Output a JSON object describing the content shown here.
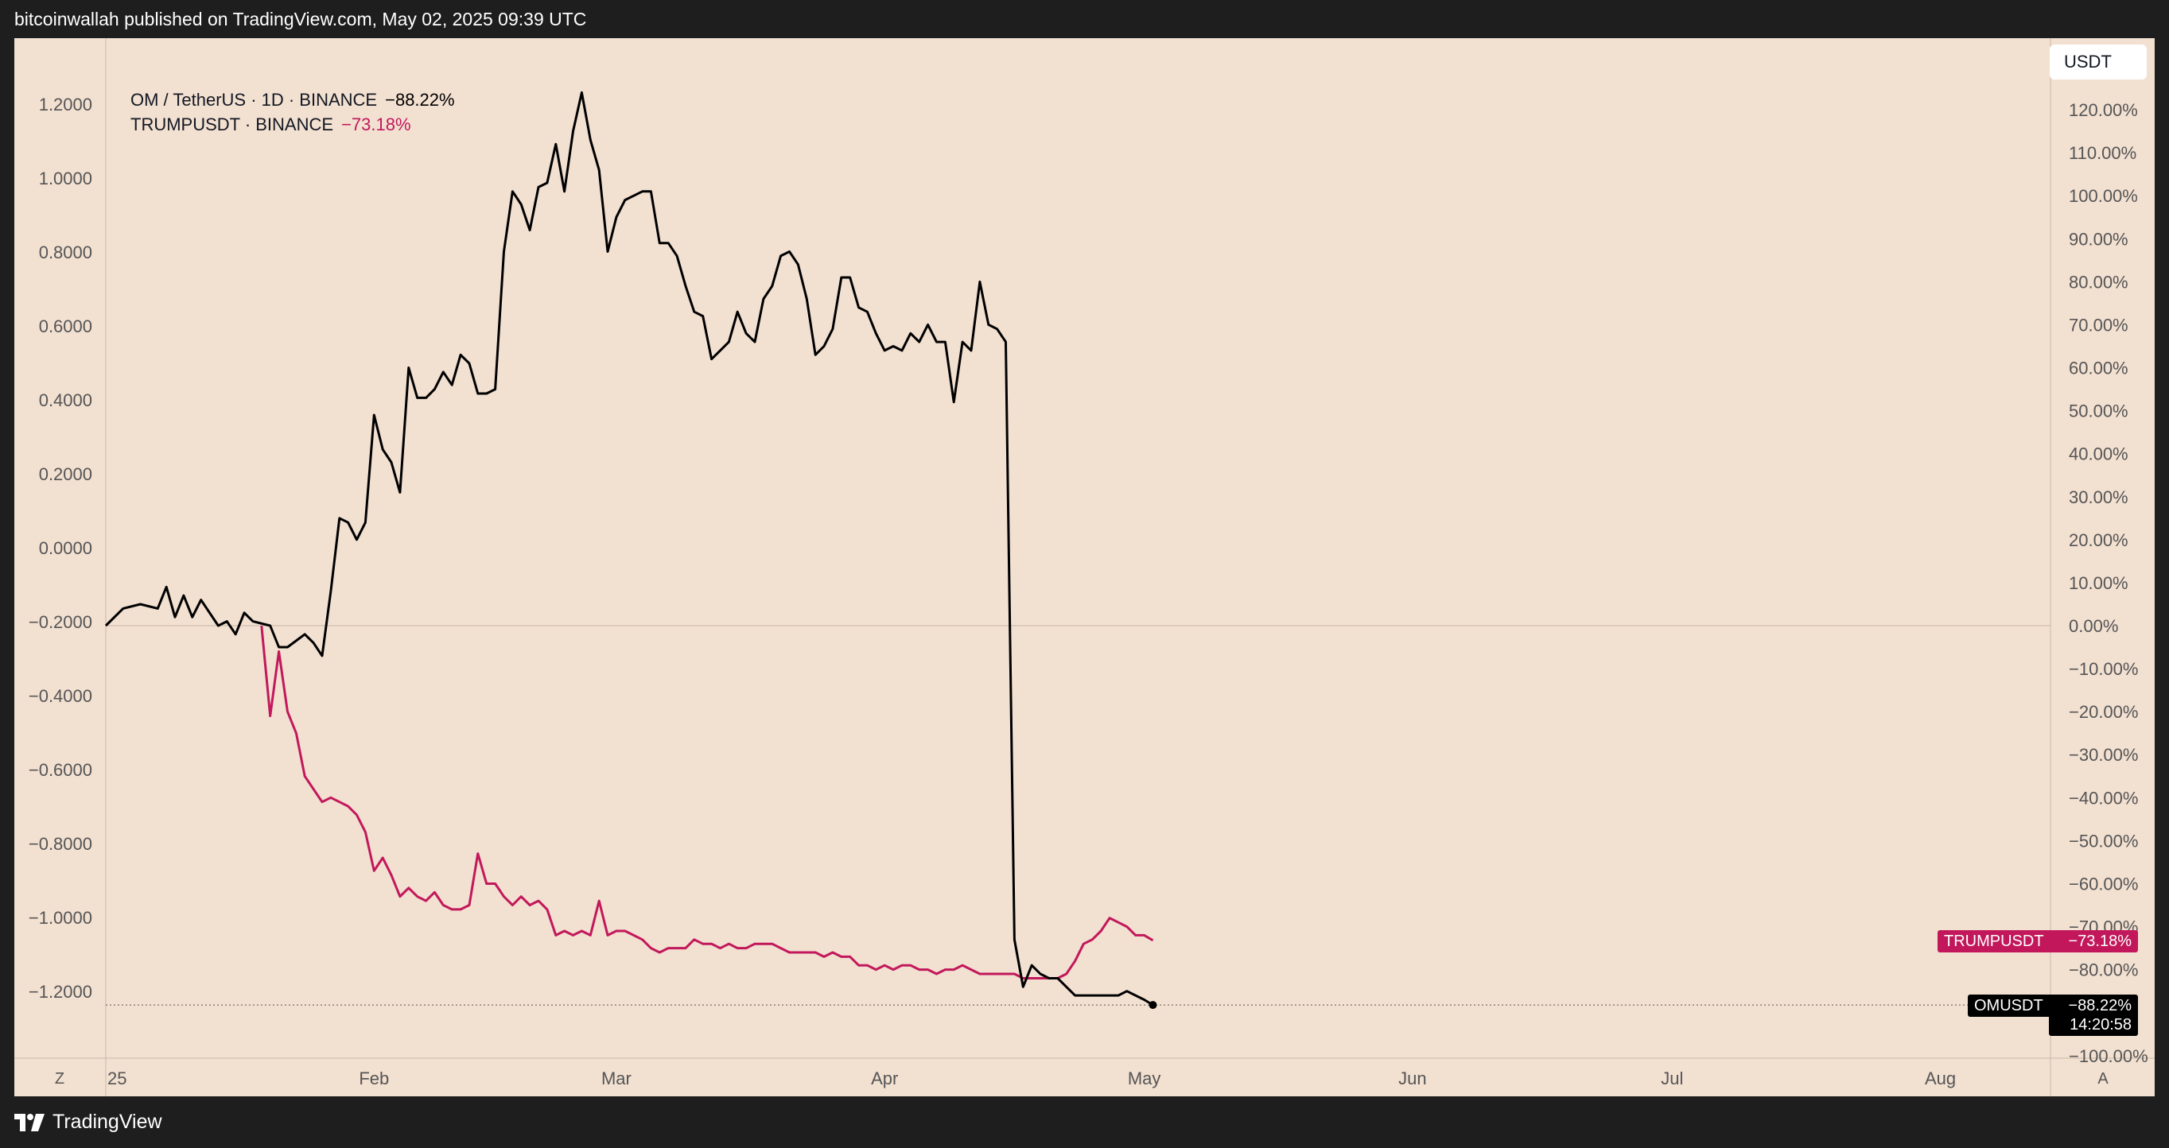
{
  "header": {
    "publisher_text": "bitcoinwallah published on TradingView.com, May 02, 2025 09:39 UTC"
  },
  "footer": {
    "brand": "TradingView"
  },
  "controls": {
    "currency_button": "USDT",
    "zoom_button": "Z",
    "auto_button": "A"
  },
  "legend": {
    "om": {
      "label": "OM / TetherUS · 1D · BINANCE",
      "change": "−88.22%"
    },
    "trump": {
      "label": "TRUMPUSDT · BINANCE",
      "change": "−73.18%"
    }
  },
  "price_tags": {
    "trump": {
      "name": "TRUMPUSDT",
      "value": "−73.18%"
    },
    "om": {
      "name": "OMUSDT",
      "value": "−88.22%",
      "countdown": "14:20:58"
    }
  },
  "colors": {
    "background": "#f2e0d1",
    "frame": "#1e1e1e",
    "om_line": "#000000",
    "trump_line": "#c2185b",
    "axis_text": "#555555"
  },
  "chart_data": {
    "type": "line",
    "title": "",
    "xlabel": "",
    "x_tick_labels": [
      "25",
      "Feb",
      "Mar",
      "Apr",
      "May",
      "Jun",
      "Jul",
      "Aug"
    ],
    "x_tick_dates": [
      "2025-01-01",
      "2025-02-01",
      "2025-03-01",
      "2025-04-01",
      "2025-05-01",
      "2025-06-01",
      "2025-07-01",
      "2025-08-01"
    ],
    "x_range": [
      "2025-01-01",
      "2025-08-19"
    ],
    "left_axis": {
      "ticks": [
        1.2,
        1.0,
        0.8,
        0.6,
        0.4,
        0.2,
        0.0,
        -0.2,
        -0.4,
        -0.6,
        -0.8,
        -1.0,
        -1.2
      ],
      "tick_labels": [
        "1.2000",
        "1.0000",
        "0.8000",
        "0.6000",
        "0.4000",
        "0.2000",
        "0.0000",
        "−0.2000",
        "−0.4000",
        "−0.6000",
        "−0.8000",
        "−1.0000",
        "−1.2000"
      ]
    },
    "right_axis": {
      "unit": "%",
      "range": [
        -100,
        123
      ],
      "ticks": [
        120,
        110,
        100,
        90,
        80,
        70,
        60,
        50,
        40,
        30,
        20,
        10,
        0,
        -10,
        -20,
        -30,
        -40,
        -50,
        -60,
        -70,
        -80,
        -90,
        -100
      ],
      "tick_labels": [
        "120.00%",
        "110.00%",
        "100.00%",
        "90.00%",
        "80.00%",
        "70.00%",
        "60.00%",
        "50.00%",
        "40.00%",
        "30.00%",
        "20.00%",
        "10.00%",
        "0.00%",
        "−10.00%",
        "−20.00%",
        "−30.00%",
        "−40.00%",
        "−50.00%",
        "−60.00%",
        "−70.00%",
        "−80.00%",
        "−90.00%",
        "−100.00%"
      ]
    },
    "grid": false,
    "legend_position": "top-left",
    "series": [
      {
        "name": "OM / TetherUS · 1D · BINANCE",
        "color": "#000000",
        "points": [
          [
            "2025-01-01",
            0.0
          ],
          [
            "2025-01-03",
            4
          ],
          [
            "2025-01-05",
            5
          ],
          [
            "2025-01-07",
            4
          ],
          [
            "2025-01-08",
            9
          ],
          [
            "2025-01-09",
            2
          ],
          [
            "2025-01-10",
            7
          ],
          [
            "2025-01-11",
            2
          ],
          [
            "2025-01-12",
            6
          ],
          [
            "2025-01-14",
            0
          ],
          [
            "2025-01-15",
            1
          ],
          [
            "2025-01-16",
            -2
          ],
          [
            "2025-01-17",
            3
          ],
          [
            "2025-01-18",
            1
          ],
          [
            "2025-01-20",
            0
          ],
          [
            "2025-01-21",
            -5
          ],
          [
            "2025-01-22",
            -5
          ],
          [
            "2025-01-24",
            -2
          ],
          [
            "2025-01-25",
            -4
          ],
          [
            "2025-01-26",
            -7
          ],
          [
            "2025-01-27",
            8
          ],
          [
            "2025-01-28",
            25
          ],
          [
            "2025-01-29",
            24
          ],
          [
            "2025-01-30",
            20
          ],
          [
            "2025-01-31",
            24
          ],
          [
            "2025-02-01",
            49
          ],
          [
            "2025-02-02",
            41
          ],
          [
            "2025-02-03",
            38
          ],
          [
            "2025-02-04",
            31
          ],
          [
            "2025-02-05",
            60
          ],
          [
            "2025-02-06",
            53
          ],
          [
            "2025-02-07",
            53
          ],
          [
            "2025-02-08",
            55
          ],
          [
            "2025-02-09",
            59
          ],
          [
            "2025-02-10",
            56
          ],
          [
            "2025-02-11",
            63
          ],
          [
            "2025-02-12",
            61
          ],
          [
            "2025-02-13",
            54
          ],
          [
            "2025-02-14",
            54
          ],
          [
            "2025-02-15",
            55
          ],
          [
            "2025-02-16",
            87
          ],
          [
            "2025-02-17",
            101
          ],
          [
            "2025-02-18",
            98
          ],
          [
            "2025-02-19",
            92
          ],
          [
            "2025-02-20",
            102
          ],
          [
            "2025-02-21",
            103
          ],
          [
            "2025-02-22",
            112
          ],
          [
            "2025-02-23",
            101
          ],
          [
            "2025-02-24",
            115
          ],
          [
            "2025-02-25",
            124
          ],
          [
            "2025-02-26",
            113
          ],
          [
            "2025-02-27",
            106
          ],
          [
            "2025-02-28",
            87
          ],
          [
            "2025-03-01",
            95
          ],
          [
            "2025-03-02",
            99
          ],
          [
            "2025-03-04",
            101
          ],
          [
            "2025-03-05",
            101
          ],
          [
            "2025-03-06",
            89
          ],
          [
            "2025-03-07",
            89
          ],
          [
            "2025-03-08",
            86
          ],
          [
            "2025-03-09",
            79
          ],
          [
            "2025-03-10",
            73
          ],
          [
            "2025-03-11",
            72
          ],
          [
            "2025-03-12",
            62
          ],
          [
            "2025-03-13",
            64
          ],
          [
            "2025-03-14",
            66
          ],
          [
            "2025-03-15",
            73
          ],
          [
            "2025-03-16",
            68
          ],
          [
            "2025-03-17",
            66
          ],
          [
            "2025-03-18",
            76
          ],
          [
            "2025-03-19",
            79
          ],
          [
            "2025-03-20",
            86
          ],
          [
            "2025-03-21",
            87
          ],
          [
            "2025-03-22",
            84
          ],
          [
            "2025-03-23",
            76
          ],
          [
            "2025-03-24",
            63
          ],
          [
            "2025-03-25",
            65
          ],
          [
            "2025-03-26",
            69
          ],
          [
            "2025-03-27",
            81
          ],
          [
            "2025-03-28",
            81
          ],
          [
            "2025-03-29",
            74
          ],
          [
            "2025-03-30",
            73
          ],
          [
            "2025-03-31",
            68
          ],
          [
            "2025-04-01",
            64
          ],
          [
            "2025-04-02",
            65
          ],
          [
            "2025-04-03",
            64
          ],
          [
            "2025-04-04",
            68
          ],
          [
            "2025-04-05",
            66
          ],
          [
            "2025-04-06",
            70
          ],
          [
            "2025-04-07",
            66
          ],
          [
            "2025-04-08",
            66
          ],
          [
            "2025-04-09",
            52
          ],
          [
            "2025-04-10",
            66
          ],
          [
            "2025-04-11",
            64
          ],
          [
            "2025-04-12",
            80
          ],
          [
            "2025-04-13",
            70
          ],
          [
            "2025-04-14",
            69
          ],
          [
            "2025-04-15",
            66
          ],
          [
            "2025-04-16",
            -73
          ],
          [
            "2025-04-17",
            -84
          ],
          [
            "2025-04-18",
            -79
          ],
          [
            "2025-04-19",
            -81
          ],
          [
            "2025-04-20",
            -82
          ],
          [
            "2025-04-21",
            -82
          ],
          [
            "2025-04-22",
            -84
          ],
          [
            "2025-04-23",
            -86
          ],
          [
            "2025-04-24",
            -86
          ],
          [
            "2025-04-25",
            -86
          ],
          [
            "2025-04-26",
            -86
          ],
          [
            "2025-04-27",
            -86
          ],
          [
            "2025-04-28",
            -86
          ],
          [
            "2025-04-29",
            -85
          ],
          [
            "2025-04-30",
            -86
          ],
          [
            "2025-05-01",
            -87
          ],
          [
            "2025-05-02",
            -88.22
          ]
        ]
      },
      {
        "name": "TRUMPUSDT · BINANCE",
        "color": "#c2185b",
        "points": [
          [
            "2025-01-19",
            0
          ],
          [
            "2025-01-20",
            -21
          ],
          [
            "2025-01-21",
            -6
          ],
          [
            "2025-01-22",
            -20
          ],
          [
            "2025-01-23",
            -25
          ],
          [
            "2025-01-24",
            -35
          ],
          [
            "2025-01-25",
            -38
          ],
          [
            "2025-01-26",
            -41
          ],
          [
            "2025-01-27",
            -40
          ],
          [
            "2025-01-28",
            -41
          ],
          [
            "2025-01-29",
            -42
          ],
          [
            "2025-01-30",
            -44
          ],
          [
            "2025-01-31",
            -48
          ],
          [
            "2025-02-01",
            -57
          ],
          [
            "2025-02-02",
            -54
          ],
          [
            "2025-02-03",
            -58
          ],
          [
            "2025-02-04",
            -63
          ],
          [
            "2025-02-05",
            -61
          ],
          [
            "2025-02-06",
            -63
          ],
          [
            "2025-02-07",
            -64
          ],
          [
            "2025-02-08",
            -62
          ],
          [
            "2025-02-09",
            -65
          ],
          [
            "2025-02-10",
            -66
          ],
          [
            "2025-02-11",
            -66
          ],
          [
            "2025-02-12",
            -65
          ],
          [
            "2025-02-13",
            -53
          ],
          [
            "2025-02-14",
            -60
          ],
          [
            "2025-02-15",
            -60
          ],
          [
            "2025-02-16",
            -63
          ],
          [
            "2025-02-17",
            -65
          ],
          [
            "2025-02-18",
            -63
          ],
          [
            "2025-02-19",
            -65
          ],
          [
            "2025-02-20",
            -64
          ],
          [
            "2025-02-21",
            -66
          ],
          [
            "2025-02-22",
            -72
          ],
          [
            "2025-02-23",
            -71
          ],
          [
            "2025-02-24",
            -72
          ],
          [
            "2025-02-25",
            -71
          ],
          [
            "2025-02-26",
            -72
          ],
          [
            "2025-02-27",
            -64
          ],
          [
            "2025-02-28",
            -72
          ],
          [
            "2025-03-01",
            -71
          ],
          [
            "2025-03-02",
            -71
          ],
          [
            "2025-03-03",
            -72
          ],
          [
            "2025-03-04",
            -73
          ],
          [
            "2025-03-05",
            -75
          ],
          [
            "2025-03-06",
            -76
          ],
          [
            "2025-03-07",
            -75
          ],
          [
            "2025-03-08",
            -75
          ],
          [
            "2025-03-09",
            -75
          ],
          [
            "2025-03-10",
            -73
          ],
          [
            "2025-03-11",
            -74
          ],
          [
            "2025-03-12",
            -74
          ],
          [
            "2025-03-13",
            -75
          ],
          [
            "2025-03-14",
            -74
          ],
          [
            "2025-03-15",
            -75
          ],
          [
            "2025-03-16",
            -75
          ],
          [
            "2025-03-17",
            -74
          ],
          [
            "2025-03-18",
            -74
          ],
          [
            "2025-03-19",
            -74
          ],
          [
            "2025-03-20",
            -75
          ],
          [
            "2025-03-21",
            -76
          ],
          [
            "2025-03-22",
            -76
          ],
          [
            "2025-03-23",
            -76
          ],
          [
            "2025-03-24",
            -76
          ],
          [
            "2025-03-25",
            -77
          ],
          [
            "2025-03-26",
            -76
          ],
          [
            "2025-03-27",
            -77
          ],
          [
            "2025-03-28",
            -77
          ],
          [
            "2025-03-29",
            -79
          ],
          [
            "2025-03-30",
            -79
          ],
          [
            "2025-03-31",
            -80
          ],
          [
            "2025-04-01",
            -79
          ],
          [
            "2025-04-02",
            -80
          ],
          [
            "2025-04-03",
            -79
          ],
          [
            "2025-04-04",
            -79
          ],
          [
            "2025-04-05",
            -80
          ],
          [
            "2025-04-06",
            -80
          ],
          [
            "2025-04-07",
            -81
          ],
          [
            "2025-04-08",
            -80
          ],
          [
            "2025-04-09",
            -80
          ],
          [
            "2025-04-10",
            -79
          ],
          [
            "2025-04-11",
            -80
          ],
          [
            "2025-04-12",
            -81
          ],
          [
            "2025-04-13",
            -81
          ],
          [
            "2025-04-14",
            -81
          ],
          [
            "2025-04-15",
            -81
          ],
          [
            "2025-04-16",
            -81
          ],
          [
            "2025-04-17",
            -82
          ],
          [
            "2025-04-18",
            -82
          ],
          [
            "2025-04-19",
            -82
          ],
          [
            "2025-04-20",
            -82
          ],
          [
            "2025-04-21",
            -82
          ],
          [
            "2025-04-22",
            -81
          ],
          [
            "2025-04-23",
            -78
          ],
          [
            "2025-04-24",
            -74
          ],
          [
            "2025-04-25",
            -73
          ],
          [
            "2025-04-26",
            -71
          ],
          [
            "2025-04-27",
            -68
          ],
          [
            "2025-04-28",
            -69
          ],
          [
            "2025-04-29",
            -70
          ],
          [
            "2025-04-30",
            -72
          ],
          [
            "2025-05-01",
            -72
          ],
          [
            "2025-05-02",
            -73.18
          ]
        ]
      }
    ]
  }
}
